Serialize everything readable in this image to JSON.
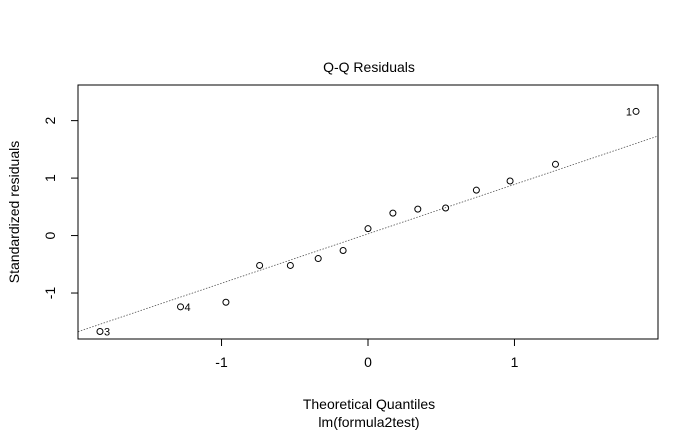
{
  "chart_data": {
    "type": "scatter",
    "title": "Q-Q Residuals",
    "xlabel": "Theoretical Quantiles",
    "xlabel2": "lm(formula2test)",
    "ylabel": "Standardized residuals",
    "xlim": [
      -1.98,
      1.98
    ],
    "ylim": [
      -1.8,
      2.62
    ],
    "xticks": [
      -1,
      0,
      1
    ],
    "yticks": [
      -1,
      0,
      1,
      2
    ],
    "xtick_labels": [
      "-1",
      "0",
      "1"
    ],
    "ytick_labels": [
      "-1",
      "0",
      "1",
      "2"
    ],
    "reference_line": {
      "intercept": 0.03,
      "slope": 0.86,
      "style": "dotted"
    },
    "points": [
      {
        "x": -1.83,
        "y": -1.67,
        "label": "3"
      },
      {
        "x": -1.28,
        "y": -1.24,
        "label": "4"
      },
      {
        "x": -0.97,
        "y": -1.16,
        "label": ""
      },
      {
        "x": -0.74,
        "y": -0.52,
        "label": ""
      },
      {
        "x": -0.53,
        "y": -0.52,
        "label": ""
      },
      {
        "x": -0.34,
        "y": -0.4,
        "label": ""
      },
      {
        "x": -0.17,
        "y": -0.26,
        "label": ""
      },
      {
        "x": 0.0,
        "y": 0.12,
        "label": ""
      },
      {
        "x": 0.17,
        "y": 0.39,
        "label": ""
      },
      {
        "x": 0.34,
        "y": 0.46,
        "label": ""
      },
      {
        "x": 0.53,
        "y": 0.48,
        "label": ""
      },
      {
        "x": 0.74,
        "y": 0.79,
        "label": ""
      },
      {
        "x": 0.97,
        "y": 0.95,
        "label": ""
      },
      {
        "x": 1.28,
        "y": 1.24,
        "label": ""
      },
      {
        "x": 1.83,
        "y": 2.16,
        "label": "1"
      }
    ],
    "colors": {
      "points": "#000000",
      "line": "#555555"
    }
  }
}
